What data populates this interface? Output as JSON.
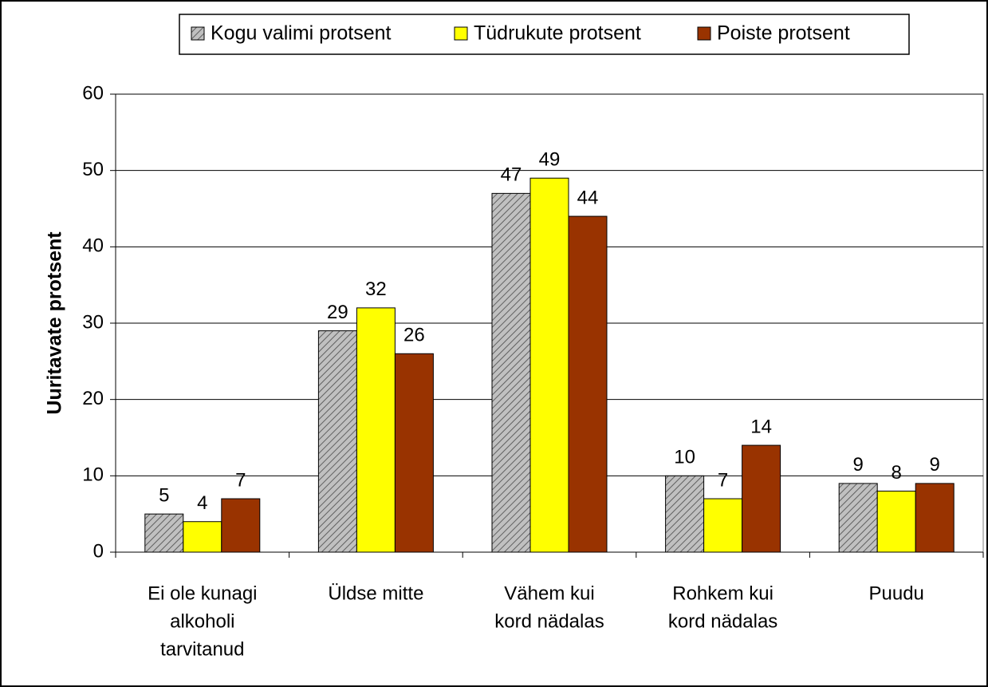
{
  "chart_data": {
    "type": "bar",
    "y_label": "Uuritavate protsent",
    "categories": [
      [
        "Ei ole kunagi",
        "alkoholi",
        "tarvitanud"
      ],
      [
        "Üldse mitte"
      ],
      [
        "Vähem kui",
        "kord nädalas"
      ],
      [
        "Rohkem kui",
        "kord nädalas"
      ],
      [
        "Puudu"
      ]
    ],
    "series": [
      {
        "name": "Kogu valimi protsent",
        "color": "#c0c0c0",
        "pattern": "hatch",
        "values": [
          5,
          29,
          47,
          10,
          9
        ]
      },
      {
        "name": "Tüdrukute protsent",
        "color": "#ffff00",
        "values": [
          4,
          32,
          49,
          7,
          8
        ]
      },
      {
        "name": "Poiste protsent",
        "color": "#993300",
        "values": [
          7,
          26,
          44,
          14,
          9
        ]
      }
    ],
    "ylim": [
      0,
      60
    ],
    "yticks": [
      0,
      10,
      20,
      30,
      40,
      50,
      60
    ],
    "grid": true
  }
}
